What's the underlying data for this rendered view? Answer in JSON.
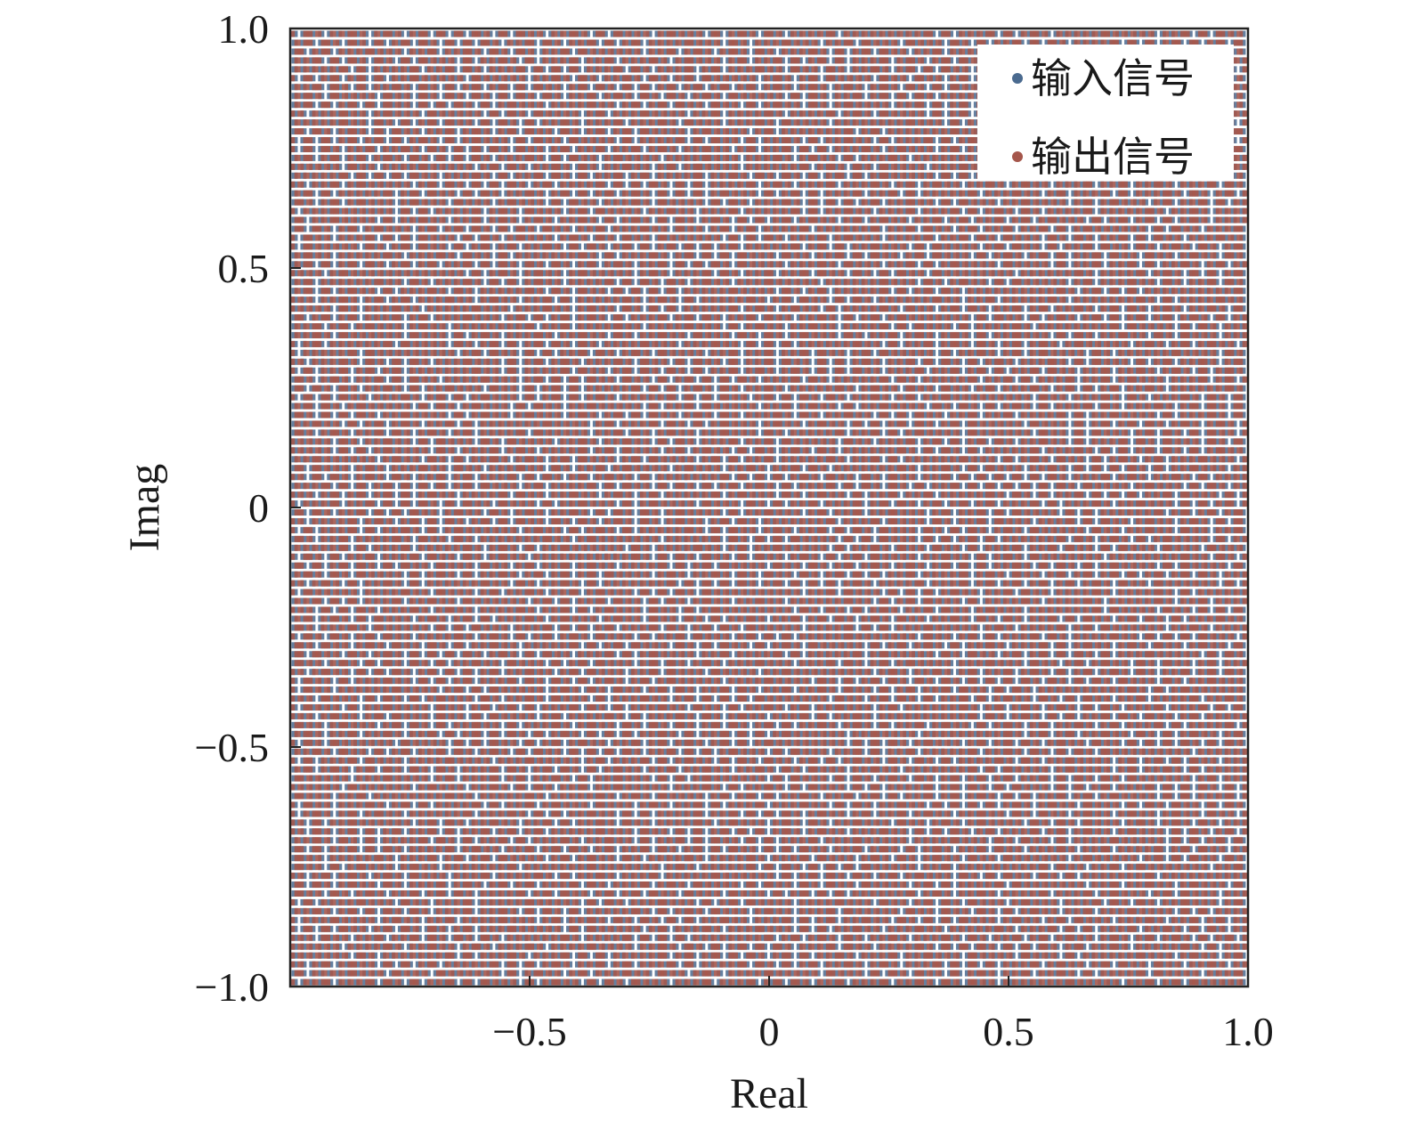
{
  "chart_data": {
    "type": "scatter",
    "title": "",
    "xlabel": "Real",
    "ylabel": "Imag",
    "xlim": [
      -1.0,
      1.0
    ],
    "ylim": [
      -1.0,
      1.0
    ],
    "x_ticks": [
      -0.5,
      0,
      0.5,
      1.0
    ],
    "x_tick_labels": [
      "−0.5",
      "0",
      "0.5",
      "1.0"
    ],
    "y_ticks": [
      1.0,
      0.5,
      0,
      -0.5,
      -1.0
    ],
    "y_tick_labels": [
      "1.0",
      "0.5",
      "0",
      "−0.5",
      "−1.0"
    ],
    "grid": false,
    "legend_position": "top-right",
    "series": [
      {
        "name": "输入信号",
        "color": "#4a6a8f"
      },
      {
        "name": "输出信号",
        "color": "#a5564b"
      }
    ],
    "point_grid": {
      "spacing_data_units": 0.0185,
      "distribution": "dense uniform lattice covering [-1,1]x[-1,1]"
    }
  }
}
